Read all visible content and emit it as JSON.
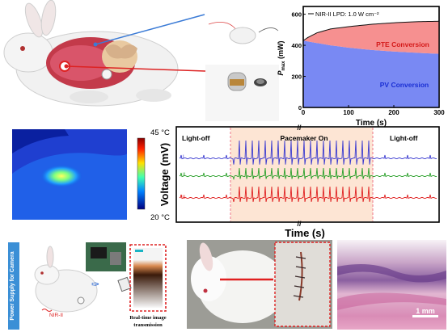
{
  "panel_a": {
    "legend": "NIR-II LPD:  1.0 W cm⁻²",
    "ylabel_main": "P",
    "ylabel_sub": "max",
    "ylabel_unit": " (mW)",
    "xlabel": "Time (s)",
    "region_pte": "PTE Conversion",
    "region_pv": "PV Conversion",
    "chart_data": {
      "type": "area",
      "xlim": [
        0,
        300
      ],
      "ylim": [
        0,
        650
      ],
      "x_ticks": [
        "0",
        "100",
        "200",
        "300"
      ],
      "y_ticks": [
        "0",
        "200",
        "400",
        "600"
      ],
      "series": [
        {
          "name": "",
          "role": "total",
          "x": [
            0,
            10,
            30,
            60,
            100,
            150,
            200,
            250,
            300
          ],
          "y": [
            430,
            450,
            480,
            505,
            520,
            535,
            545,
            552,
            555
          ]
        },
        {
          "name": "",
          "role": "pv",
          "x": [
            0,
            30,
            60,
            100,
            150,
            200,
            250,
            300
          ],
          "y": [
            430,
            415,
            400,
            385,
            370,
            360,
            352,
            345
          ]
        }
      ]
    }
  },
  "panel_thermal": {
    "max_label": "45 °C",
    "min_label": "20 °C"
  },
  "panel_pacemaker": {
    "ylabel": "Voltage (mV)",
    "xlabel": "Time (s)",
    "left_label": "Light-off",
    "mid_label": "Pacemaker On",
    "right_label": "Light-off",
    "lead_1": "I",
    "lead_2": "II",
    "lead_3": "III"
  },
  "panel_camera": {
    "side_label": "Power Supply for Camera",
    "nir_label": "NIR-II",
    "caption_line1": "Real-time image",
    "caption_line2": "transmission"
  },
  "panel_histology": {
    "scale_label": "1 mm"
  }
}
